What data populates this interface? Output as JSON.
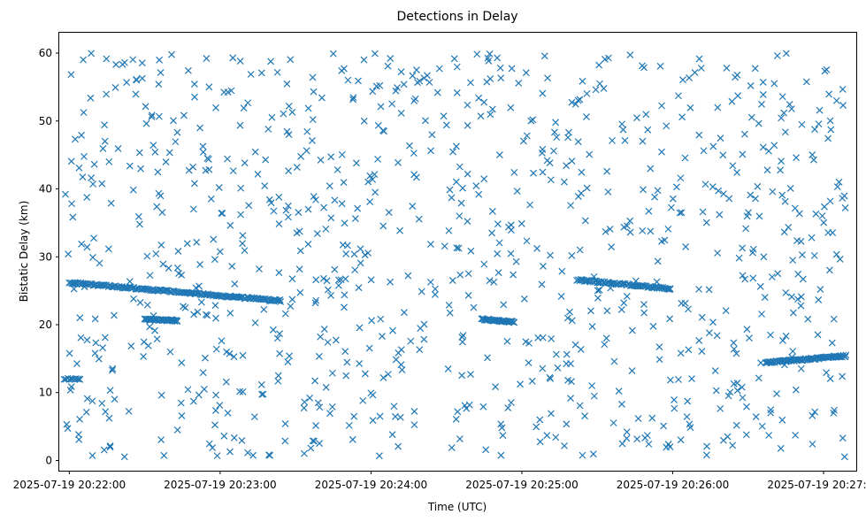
{
  "chart_data": {
    "type": "scatter",
    "title": "Detections in Delay",
    "xlabel": "Time (UTC)",
    "ylabel": "Bistatic Delay (km)",
    "marker": "x",
    "marker_color": "#1f77b4",
    "xlim": [
      "2025-07-19 20:21:56",
      "2025-07-19 20:27:13"
    ],
    "ylim": [
      -1.5,
      63
    ],
    "grid": false,
    "legend": "none",
    "x_ticks": [
      "2025-07-19 20:22:00",
      "2025-07-19 20:23:00",
      "2025-07-19 20:24:00",
      "2025-07-19 20:25:00",
      "2025-07-19 20:26:00",
      "2025-07-19 20:27:00"
    ],
    "y_ticks": [
      0,
      10,
      20,
      30,
      40,
      50,
      60
    ],
    "clutter_time_range": [
      "2025-07-19 20:21:58",
      "2025-07-19 20:27:09"
    ],
    "clutter_delay_range": [
      0.5,
      60
    ],
    "clutter_count": 950,
    "tracks": [
      {
        "start": "2025-07-19 20:21:58",
        "end": "2025-07-19 20:22:04",
        "delay_start": 12.0,
        "delay_end": 12.0,
        "points": 10
      },
      {
        "start": "2025-07-19 20:22:00",
        "end": "2025-07-19 20:23:24",
        "delay_start": 26.2,
        "delay_end": 23.5,
        "points": 170
      },
      {
        "start": "2025-07-19 20:22:30",
        "end": "2025-07-19 20:22:43",
        "delay_start": 20.8,
        "delay_end": 20.6,
        "points": 40
      },
      {
        "start": "2025-07-19 20:24:44",
        "end": "2025-07-19 20:24:57",
        "delay_start": 20.8,
        "delay_end": 20.4,
        "points": 40
      },
      {
        "start": "2025-07-19 20:25:22",
        "end": "2025-07-19 20:25:59",
        "delay_start": 26.6,
        "delay_end": 25.3,
        "points": 80
      },
      {
        "start": "2025-07-19 20:26:37",
        "end": "2025-07-19 20:27:09",
        "delay_start": 14.4,
        "delay_end": 15.4,
        "points": 80
      }
    ]
  }
}
